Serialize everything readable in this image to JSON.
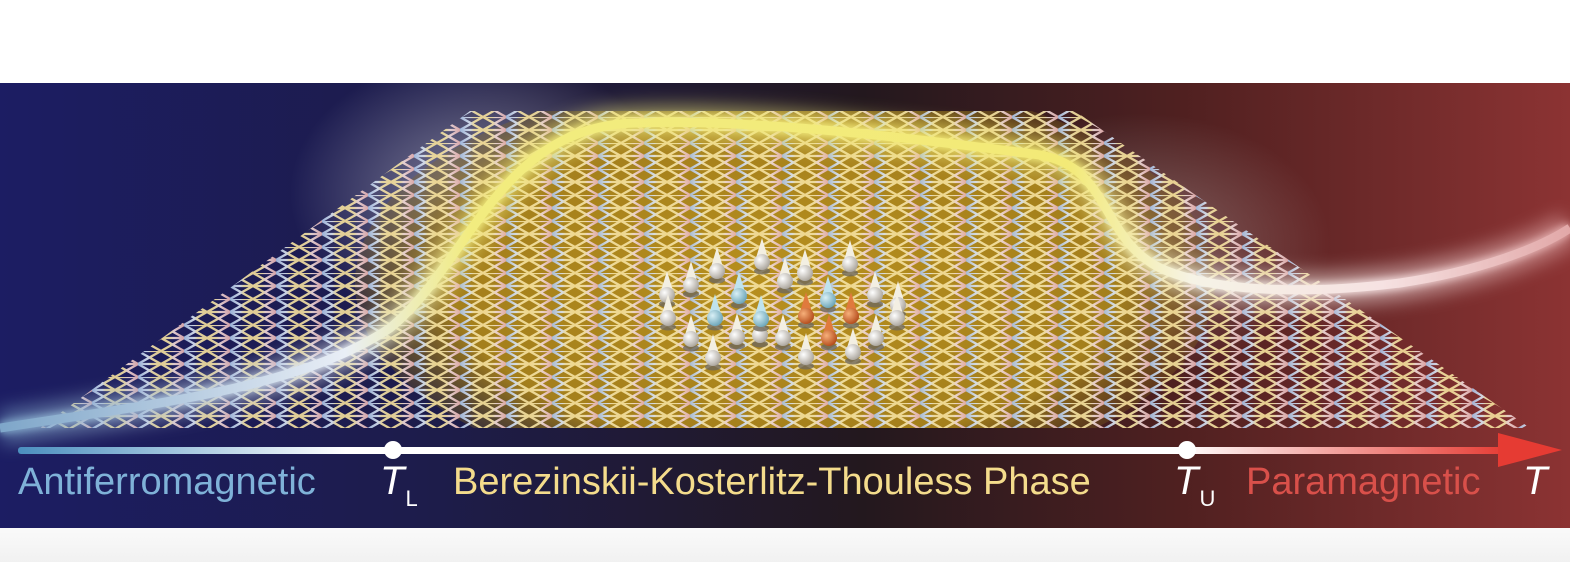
{
  "phases": {
    "antiferromagnetic": "Antiferromagnetic",
    "bkt": "Berezinskii-Kosterlitz-Thouless Phase",
    "paramagnetic": "Paramagnetic"
  },
  "transitions": {
    "lower": {
      "symbol": "T",
      "subscript": "L"
    },
    "upper": {
      "symbol": "T",
      "subscript": "U"
    }
  },
  "axis": {
    "label": "T"
  },
  "colors": {
    "antiferromagnetic": "#7fb2d8",
    "bkt": "#f4dc8c",
    "paramagnetic": "#d9504a",
    "arrow": "#e63b33",
    "curve": "#f3ec7a"
  },
  "spins": {
    "neutral": [
      [
        667,
        295
      ],
      [
        691,
        285
      ],
      [
        717,
        271
      ],
      [
        762,
        262
      ],
      [
        785,
        281
      ],
      [
        805,
        273
      ],
      [
        850,
        264
      ],
      [
        875,
        295
      ],
      [
        898,
        305
      ],
      [
        668,
        318
      ],
      [
        691,
        339
      ],
      [
        713,
        358
      ],
      [
        737,
        337
      ],
      [
        760,
        335
      ],
      [
        783,
        338
      ],
      [
        806,
        357
      ],
      [
        853,
        352
      ],
      [
        876,
        338
      ],
      [
        897,
        318
      ]
    ],
    "blue": [
      [
        739,
        296
      ],
      [
        715,
        318
      ],
      [
        761,
        319
      ],
      [
        828,
        300
      ]
    ],
    "orange": [
      [
        806,
        316
      ],
      [
        829,
        338
      ],
      [
        851,
        316
      ]
    ]
  }
}
